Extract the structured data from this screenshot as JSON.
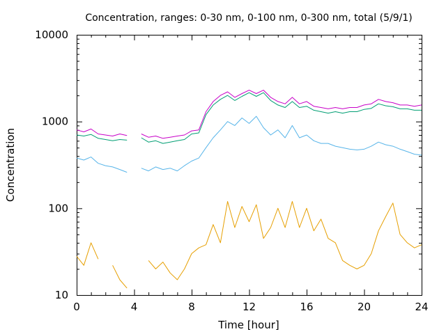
{
  "chart_data": {
    "type": "line",
    "title": "Concentration, ranges: 0-30 nm, 0-100 nm, 0-300 nm, total (5/9/1)",
    "xlabel": "Time [hour]",
    "ylabel": "Concentration",
    "xlim": [
      0,
      24
    ],
    "ylim": [
      10,
      10000
    ],
    "yscale": "log",
    "grid": false,
    "x_ticks": [
      0,
      4,
      8,
      12,
      16,
      20,
      24
    ],
    "x_tick_labels": [
      "0",
      "4",
      "8",
      "12",
      "16",
      "20",
      "24"
    ],
    "y_ticks": [
      10,
      100,
      1000,
      10000
    ],
    "y_tick_labels": [
      "10",
      "100",
      "1000",
      "10000"
    ],
    "series": [
      {
        "color": "#c800c8",
        "x": [
          0,
          0.5,
          1,
          1.5,
          2,
          2.5,
          3,
          3.5,
          4,
          4.5,
          5,
          5.5,
          6,
          6.5,
          7,
          7.5,
          8,
          8.5,
          9,
          9.5,
          10,
          10.5,
          11,
          11.5,
          12,
          12.5,
          13,
          13.5,
          14,
          14.5,
          15,
          15.5,
          16,
          16.5,
          17,
          17.5,
          18,
          18.5,
          19,
          19.5,
          20,
          20.5,
          21,
          21.5,
          22,
          22.5,
          23,
          23.5,
          24
        ],
        "values": [
          800,
          760,
          820,
          720,
          700,
          680,
          720,
          690,
          null,
          720,
          660,
          680,
          640,
          660,
          680,
          700,
          780,
          800,
          1300,
          1700,
          2000,
          2200,
          1900,
          2100,
          2300,
          2100,
          2300,
          1900,
          1700,
          1600,
          1900,
          1600,
          1700,
          1500,
          1450,
          1400,
          1450,
          1400,
          1450,
          1450,
          1550,
          1600,
          1800,
          1700,
          1650,
          1550,
          1550,
          1500,
          1550
        ]
      },
      {
        "color": "#009e73",
        "x": [
          0,
          0.5,
          1,
          1.5,
          2,
          2.5,
          3,
          3.5,
          4,
          4.5,
          5,
          5.5,
          6,
          6.5,
          7,
          7.5,
          8,
          8.5,
          9,
          9.5,
          10,
          10.5,
          11,
          11.5,
          12,
          12.5,
          13,
          13.5,
          14,
          14.5,
          15,
          15.5,
          16,
          16.5,
          17,
          17.5,
          18,
          18.5,
          19,
          19.5,
          20,
          20.5,
          21,
          21.5,
          22,
          22.5,
          23,
          23.5,
          24
        ],
        "values": [
          700,
          680,
          710,
          640,
          620,
          600,
          620,
          610,
          null,
          650,
          580,
          600,
          560,
          580,
          600,
          620,
          720,
          740,
          1200,
          1550,
          1800,
          2000,
          1750,
          1950,
          2150,
          1950,
          2150,
          1750,
          1550,
          1450,
          1700,
          1450,
          1500,
          1350,
          1300,
          1250,
          1300,
          1250,
          1300,
          1300,
          1380,
          1420,
          1600,
          1520,
          1480,
          1400,
          1400,
          1350,
          1350
        ]
      },
      {
        "color": "#56b4e9",
        "x": [
          0,
          0.5,
          1,
          1.5,
          2,
          2.5,
          3,
          3.5,
          4,
          4.5,
          5,
          5.5,
          6,
          6.5,
          7,
          7.5,
          8,
          8.5,
          9,
          9.5,
          10,
          10.5,
          11,
          11.5,
          12,
          12.5,
          13,
          13.5,
          14,
          14.5,
          15,
          15.5,
          16,
          16.5,
          17,
          17.5,
          18,
          18.5,
          19,
          19.5,
          20,
          20.5,
          21,
          21.5,
          22,
          22.5,
          23,
          23.5,
          24
        ],
        "values": [
          380,
          360,
          390,
          330,
          310,
          300,
          280,
          260,
          null,
          290,
          270,
          300,
          280,
          290,
          270,
          310,
          350,
          380,
          500,
          650,
          800,
          1000,
          900,
          1100,
          950,
          1150,
          850,
          700,
          800,
          650,
          900,
          650,
          700,
          600,
          560,
          560,
          520,
          500,
          480,
          470,
          480,
          520,
          580,
          540,
          520,
          480,
          450,
          420,
          410
        ]
      },
      {
        "color": "#e69f00",
        "x": [
          0,
          0.5,
          1,
          1.5,
          2,
          2.5,
          3,
          3.5,
          4,
          4.5,
          5,
          5.5,
          6,
          6.5,
          7,
          7.5,
          8,
          8.5,
          9,
          9.5,
          10,
          10.5,
          11,
          11.5,
          12,
          12.5,
          13,
          13.5,
          14,
          14.5,
          15,
          15.5,
          16,
          16.5,
          17,
          17.5,
          18,
          18.5,
          19,
          19.5,
          20,
          20.5,
          21,
          21.5,
          22,
          22.5,
          23,
          23.5,
          24
        ],
        "values": [
          28,
          22,
          40,
          26,
          null,
          22,
          15,
          12,
          null,
          null,
          25,
          20,
          24,
          18,
          15,
          20,
          30,
          35,
          38,
          65,
          40,
          120,
          60,
          105,
          70,
          110,
          45,
          60,
          100,
          60,
          120,
          60,
          100,
          55,
          75,
          45,
          40,
          25,
          22,
          20,
          22,
          30,
          55,
          80,
          115,
          50,
          40,
          35,
          38
        ]
      }
    ]
  }
}
